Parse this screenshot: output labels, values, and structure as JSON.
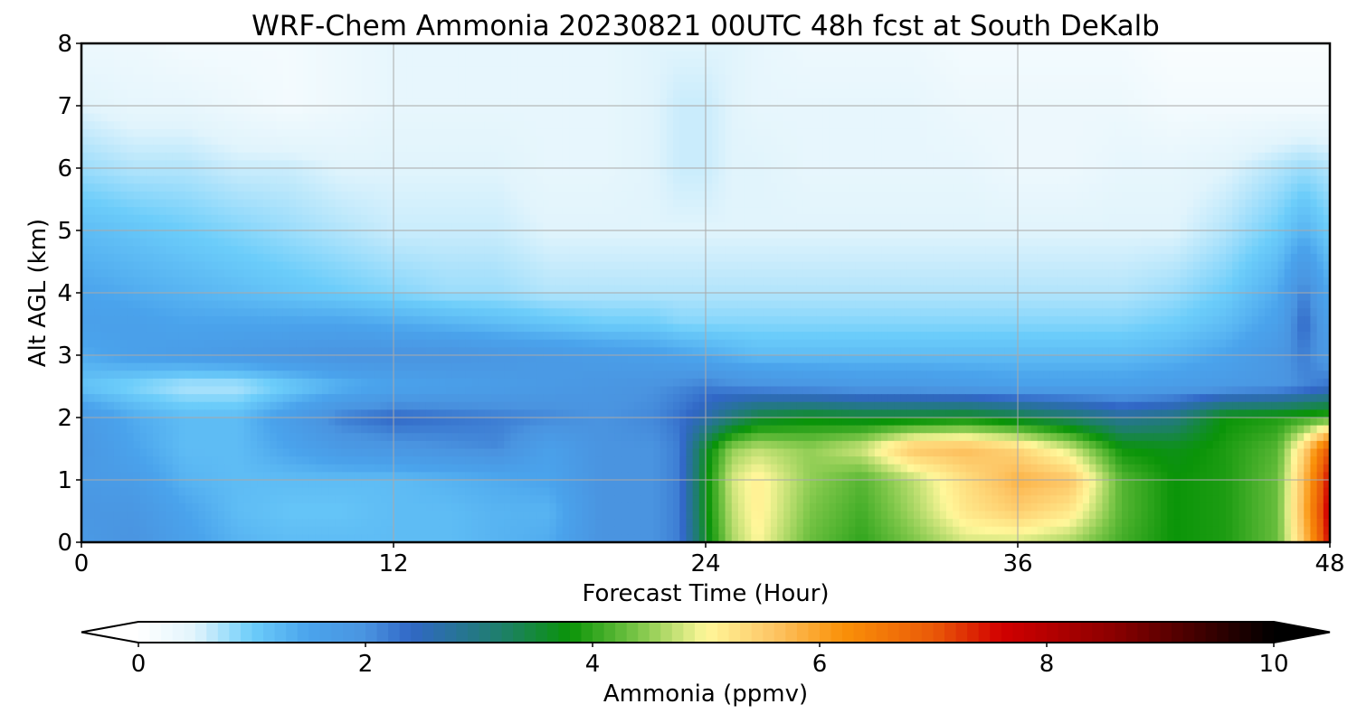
{
  "chart_data": {
    "type": "heatmap",
    "title": "WRF-Chem Ammonia  20230821 00UTC 48h fcst at South DeKalb",
    "xlabel": "Forecast Time (Hour)",
    "ylabel": "Alt AGL (km)",
    "xlim": [
      0,
      48
    ],
    "ylim": [
      0,
      8
    ],
    "xticks": [
      "0",
      "12",
      "24",
      "36",
      "48"
    ],
    "yticks": [
      "0",
      "1",
      "2",
      "3",
      "4",
      "5",
      "6",
      "7",
      "8"
    ],
    "grid": true,
    "colorbar": {
      "label": "Ammonia  (ppmv)",
      "range": [
        0,
        10
      ],
      "ticks": [
        "0",
        "2",
        "4",
        "6",
        "8",
        "10"
      ],
      "extend": "both",
      "stops": [
        {
          "v": 0.0,
          "c": "#ffffff"
        },
        {
          "v": 0.5,
          "c": "#e1f4fc"
        },
        {
          "v": 1.0,
          "c": "#6ccdfa"
        },
        {
          "v": 1.5,
          "c": "#4aa3ec"
        },
        {
          "v": 2.0,
          "c": "#4a94e0"
        },
        {
          "v": 2.4,
          "c": "#3167c6"
        },
        {
          "v": 3.2,
          "c": "#1e7f6a"
        },
        {
          "v": 3.8,
          "c": "#0a9408"
        },
        {
          "v": 4.4,
          "c": "#7cc648"
        },
        {
          "v": 5.0,
          "c": "#fff79a"
        },
        {
          "v": 5.6,
          "c": "#fdc565"
        },
        {
          "v": 6.2,
          "c": "#fa9108"
        },
        {
          "v": 7.0,
          "c": "#ea5a08"
        },
        {
          "v": 7.6,
          "c": "#d20000"
        },
        {
          "v": 8.6,
          "c": "#8a0000"
        },
        {
          "v": 10.0,
          "c": "#000000"
        }
      ]
    },
    "x": [
      0,
      2,
      4,
      6,
      8,
      10,
      12,
      14,
      16,
      18,
      20,
      22,
      23,
      24,
      25,
      26,
      28,
      30,
      32,
      34,
      36,
      38,
      40,
      42,
      44,
      46,
      47,
      48
    ],
    "y": [
      0,
      0.5,
      1,
      1.5,
      2,
      2.5,
      3,
      3.5,
      4,
      5,
      6,
      7,
      8
    ],
    "z": [
      [
        1.8,
        2.0,
        1.6,
        1.3,
        1.2,
        1.2,
        1.2,
        1.2,
        1.3,
        1.4,
        2.0,
        2.0,
        2.2,
        3.6,
        4.6,
        5.0,
        4.3,
        4.0,
        4.4,
        4.8,
        4.8,
        4.6,
        4.1,
        3.8,
        3.9,
        4.3,
        5.6,
        7.6
      ],
      [
        1.9,
        1.9,
        1.5,
        1.2,
        1.1,
        1.1,
        1.2,
        1.2,
        1.3,
        1.3,
        2.0,
        2.0,
        2.2,
        3.7,
        4.7,
        5.1,
        4.4,
        4.1,
        4.6,
        5.2,
        5.5,
        5.2,
        4.2,
        3.8,
        3.9,
        4.3,
        5.8,
        7.8
      ],
      [
        1.8,
        1.7,
        1.3,
        1.2,
        1.2,
        1.2,
        1.2,
        1.3,
        1.4,
        1.5,
        2.0,
        2.0,
        2.2,
        3.7,
        4.8,
        5.1,
        4.5,
        4.2,
        4.7,
        5.3,
        5.8,
        5.6,
        4.2,
        3.8,
        3.9,
        4.3,
        5.7,
        7.6
      ],
      [
        1.9,
        1.5,
        1.2,
        1.2,
        1.5,
        1.8,
        1.9,
        2.0,
        2.1,
        1.6,
        2.0,
        2.0,
        2.2,
        3.6,
        4.5,
        4.7,
        4.5,
        4.8,
        5.6,
        5.7,
        5.4,
        4.8,
        3.8,
        3.7,
        3.9,
        4.2,
        5.4,
        7.1
      ],
      [
        1.8,
        1.4,
        1.2,
        1.2,
        1.7,
        2.2,
        2.4,
        2.3,
        2.2,
        2.1,
        2.0,
        2.1,
        2.3,
        2.6,
        3.1,
        3.5,
        3.7,
        3.6,
        3.6,
        3.7,
        3.5,
        3.2,
        2.8,
        3.0,
        3.8,
        3.9,
        4.0,
        4.1
      ],
      [
        1.1,
        0.9,
        0.7,
        0.7,
        1.0,
        1.3,
        1.5,
        1.6,
        1.7,
        1.8,
        1.9,
        2.0,
        2.1,
        2.2,
        2.1,
        2.0,
        1.9,
        1.8,
        1.8,
        1.7,
        1.6,
        1.6,
        1.6,
        1.7,
        1.8,
        1.9,
        2.1,
        2.3
      ],
      [
        1.4,
        1.6,
        1.7,
        1.8,
        1.9,
        2.0,
        2.0,
        2.0,
        1.9,
        1.8,
        1.7,
        1.6,
        1.5,
        1.4,
        1.3,
        1.2,
        1.2,
        1.2,
        1.2,
        1.2,
        1.2,
        1.2,
        1.2,
        1.3,
        1.5,
        1.9,
        2.2,
        1.8
      ],
      [
        1.6,
        1.6,
        1.5,
        1.5,
        1.5,
        1.5,
        1.4,
        1.3,
        1.2,
        1.1,
        1.0,
        1.0,
        0.9,
        0.9,
        0.9,
        0.9,
        0.9,
        0.9,
        0.9,
        0.9,
        0.9,
        0.9,
        0.9,
        1.0,
        1.2,
        1.6,
        2.4,
        1.6
      ],
      [
        1.5,
        1.4,
        1.3,
        1.2,
        1.1,
        1.0,
        0.9,
        0.8,
        0.8,
        0.7,
        0.7,
        0.7,
        0.7,
        0.7,
        0.7,
        0.7,
        0.7,
        0.7,
        0.7,
        0.7,
        0.7,
        0.7,
        0.7,
        0.8,
        1.0,
        1.4,
        2.2,
        1.4
      ],
      [
        1.2,
        1.1,
        1.0,
        0.9,
        0.8,
        0.7,
        0.6,
        0.6,
        0.6,
        0.5,
        0.5,
        0.5,
        0.5,
        0.5,
        0.5,
        0.5,
        0.5,
        0.5,
        0.5,
        0.5,
        0.5,
        0.5,
        0.5,
        0.5,
        0.7,
        1.0,
        1.3,
        1.0
      ],
      [
        0.8,
        0.7,
        0.7,
        0.6,
        0.6,
        0.5,
        0.5,
        0.5,
        0.5,
        0.4,
        0.4,
        0.5,
        0.6,
        0.6,
        0.5,
        0.5,
        0.4,
        0.4,
        0.4,
        0.4,
        0.3,
        0.3,
        0.4,
        0.4,
        0.5,
        0.7,
        0.8,
        0.7
      ],
      [
        0.5,
        0.4,
        0.4,
        0.3,
        0.2,
        0.3,
        0.4,
        0.4,
        0.4,
        0.4,
        0.4,
        0.5,
        0.6,
        0.6,
        0.5,
        0.4,
        0.4,
        0.4,
        0.4,
        0.3,
        0.3,
        0.3,
        0.3,
        0.2,
        0.2,
        0.2,
        0.2,
        0.2
      ],
      [
        0.3,
        0.3,
        0.2,
        0.2,
        0.2,
        0.3,
        0.4,
        0.4,
        0.4,
        0.4,
        0.4,
        0.5,
        0.5,
        0.5,
        0.5,
        0.4,
        0.3,
        0.3,
        0.3,
        0.2,
        0.2,
        0.2,
        0.2,
        0.1,
        0.1,
        0.1,
        0.1,
        0.1
      ]
    ]
  }
}
